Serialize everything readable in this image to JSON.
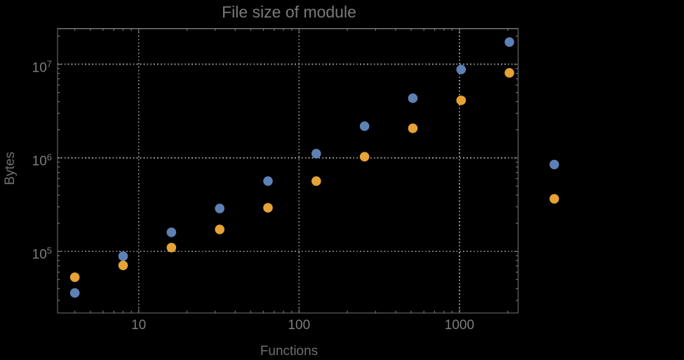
{
  "page": {
    "background": "#000000"
  },
  "chart_data": {
    "type": "scatter",
    "title": "File size of module",
    "xlabel": "Functions",
    "ylabel": "Bytes",
    "x_scale": "log",
    "y_scale": "log",
    "xlim": [
      3.12,
      2320
    ],
    "ylim": [
      22000,
      24100000
    ],
    "x_tick_values": [
      10,
      100,
      1000
    ],
    "x_tick_labels": [
      "10",
      "100",
      "1000"
    ],
    "y_tick_exponents": [
      5,
      6,
      7
    ],
    "y_tick_base": "10",
    "grid": {
      "style": "dotted",
      "at": "decades"
    },
    "legend": "none",
    "marker": {
      "shape": "circle",
      "radius": 6.8
    },
    "series": [
      {
        "name": "series-1-blue",
        "color": "#5E81B5",
        "points": [
          [
            4,
            36000
          ],
          [
            8,
            89000
          ],
          [
            16,
            160000
          ],
          [
            32,
            288000
          ],
          [
            64,
            565000
          ],
          [
            128,
            1110000
          ],
          [
            256,
            2180000
          ],
          [
            512,
            4340000
          ],
          [
            1024,
            8800000
          ],
          [
            2048,
            17300000
          ],
          [
            3900,
            850000
          ]
        ]
      },
      {
        "name": "series-2-orange",
        "color": "#E5A335",
        "points": [
          [
            4,
            53000
          ],
          [
            8,
            71000
          ],
          [
            16,
            110000
          ],
          [
            32,
            172000
          ],
          [
            64,
            293000
          ],
          [
            128,
            565000
          ],
          [
            256,
            1030000
          ],
          [
            512,
            2070000
          ],
          [
            1024,
            4120000
          ],
          [
            2048,
            8100000
          ],
          [
            3900,
            365000
          ]
        ]
      }
    ],
    "colors": {
      "background": "#000000",
      "frame": "#757575",
      "gridline": "#969696",
      "tick": "#757575",
      "tick_label": "#7d7d7d",
      "title": "#7a7a7a",
      "axis_label": "#6f6f6f"
    }
  }
}
